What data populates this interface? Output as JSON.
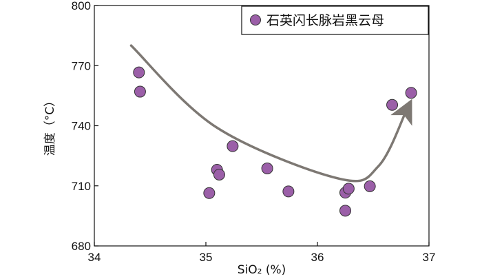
{
  "chart_data": {
    "type": "scatter",
    "xlabel": "SiO₂ (%)",
    "ylabel": "温度（°C）",
    "xlim": [
      34,
      37
    ],
    "ylim": [
      680,
      800
    ],
    "xticks": [
      34,
      35,
      36,
      37
    ],
    "yticks": [
      680,
      710,
      740,
      770,
      800
    ],
    "grid": false,
    "legend_position": "top-right",
    "series": [
      {
        "name": "石英闪长脉岩黑云母",
        "color": "#9b5fa8",
        "points": [
          {
            "x": 34.4,
            "y": 766.6
          },
          {
            "x": 34.41,
            "y": 757.0
          },
          {
            "x": 35.03,
            "y": 706.4
          },
          {
            "x": 35.1,
            "y": 718.0
          },
          {
            "x": 35.12,
            "y": 715.6
          },
          {
            "x": 35.24,
            "y": 729.8
          },
          {
            "x": 35.55,
            "y": 718.7
          },
          {
            "x": 35.74,
            "y": 707.2
          },
          {
            "x": 36.25,
            "y": 706.6
          },
          {
            "x": 36.28,
            "y": 708.6
          },
          {
            "x": 36.25,
            "y": 697.6
          },
          {
            "x": 36.47,
            "y": 709.8
          },
          {
            "x": 36.67,
            "y": 750.4
          },
          {
            "x": 36.84,
            "y": 756.4
          }
        ]
      }
    ],
    "trend_arrow": {
      "color": "#7d7873",
      "points": [
        [
          34.33,
          780
        ],
        [
          35.1,
          739
        ],
        [
          36.2,
          713.5
        ],
        [
          36.55,
          720
        ],
        [
          36.8,
          748
        ]
      ]
    }
  }
}
